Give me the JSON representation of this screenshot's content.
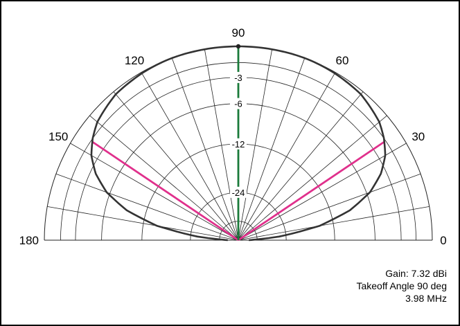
{
  "chart_data": {
    "type": "polar",
    "angle_ticks": [
      "180",
      "150",
      "120",
      "90",
      "60",
      "30",
      "0"
    ],
    "ring_labels": [
      "-3",
      "-6",
      "-12",
      "-24"
    ],
    "ring_values": [
      -3,
      -6,
      -12,
      -24
    ],
    "pattern": {
      "angle_deg": [
        0,
        2,
        5,
        10,
        15,
        20,
        25,
        30,
        35,
        40,
        45,
        50,
        55,
        60,
        65,
        70,
        75,
        80,
        85,
        90,
        95,
        100,
        105,
        110,
        115,
        120,
        125,
        130,
        135,
        140,
        145,
        150,
        155,
        160,
        165,
        170,
        175,
        178,
        180
      ],
      "relative_gain_db": [
        -50,
        -42.3,
        -26.7,
        -14.7,
        -8.9,
        -5.6,
        -3.6,
        -2.3,
        -1.5,
        -0.9,
        -0.6,
        -0.3,
        -0.2,
        -0.1,
        -0.04,
        0,
        0,
        0,
        0,
        0,
        0,
        0,
        0,
        0,
        -0.04,
        -0.1,
        -0.2,
        -0.3,
        -0.6,
        -0.9,
        -1.5,
        -2.3,
        -3.6,
        -5.6,
        -8.9,
        -14.7,
        -26.7,
        -42.3,
        -50
      ]
    },
    "markers": {
      "takeoff_angle_deg": 90,
      "beamwidth_angles_deg": [
        34,
        146
      ]
    },
    "colors": {
      "pattern": "#333333",
      "grid": "#222222",
      "takeoff": "#1a7a3a",
      "beamwidth": "#e0308c"
    }
  },
  "info": {
    "gain": "Gain: 7.32 dBi",
    "takeoff": "Takeoff Angle 90 deg",
    "frequency": "3.98 MHz"
  }
}
